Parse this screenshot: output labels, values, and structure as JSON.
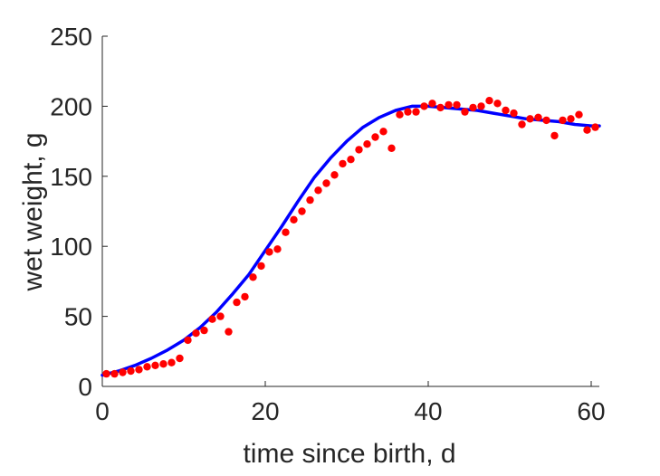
{
  "chart_data": {
    "type": "scatter",
    "title": "",
    "xlabel": "time since birth, d",
    "ylabel": "wet weight, g",
    "xlim": [
      0,
      61
    ],
    "ylim": [
      0,
      250
    ],
    "xticks": [
      0,
      20,
      40,
      60
    ],
    "yticks": [
      0,
      50,
      100,
      150,
      200,
      250
    ],
    "xtick_labels": [
      "0",
      "20",
      "40",
      "60"
    ],
    "ytick_labels": [
      "0",
      "50",
      "100",
      "150",
      "200",
      "250"
    ],
    "grid": false,
    "legend": "none",
    "series": [
      {
        "kind": "points",
        "color": "#ff0000",
        "x": [
          0.5,
          1.5,
          2.5,
          3.5,
          4.5,
          5.5,
          6.5,
          7.5,
          8.5,
          9.5,
          10.5,
          11.5,
          12.5,
          13.5,
          14.5,
          15.5,
          16.5,
          17.5,
          18.5,
          19.5,
          20.5,
          21.5,
          22.5,
          23.5,
          24.5,
          25.5,
          26.5,
          27.5,
          28.5,
          29.5,
          30.5,
          31.5,
          32.5,
          33.5,
          34.5,
          35.5,
          36.5,
          37.5,
          38.5,
          39.5,
          40.5,
          41.5,
          42.5,
          43.5,
          44.5,
          45.5,
          46.5,
          47.5,
          48.5,
          49.5,
          50.5,
          51.5,
          52.5,
          53.5,
          54.5,
          55.5,
          56.5,
          57.5,
          58.5,
          59.5,
          60.5
        ],
        "y": [
          9,
          9,
          10,
          11,
          12,
          14,
          15,
          16,
          17,
          20,
          33,
          38,
          40,
          48,
          50,
          39,
          60,
          64,
          78,
          86,
          96,
          98,
          110,
          119,
          125,
          133,
          140,
          145,
          151,
          159,
          162,
          169,
          173,
          178,
          182,
          170,
          194,
          196,
          196,
          200,
          202,
          199,
          201,
          201,
          196,
          199,
          200,
          204,
          202,
          197,
          195,
          187,
          191,
          192,
          190,
          179,
          190,
          191,
          194,
          183,
          185
        ]
      },
      {
        "kind": "curve",
        "color": "#0000ff",
        "x": [
          0,
          2,
          4,
          6,
          8,
          10,
          12,
          14,
          16,
          18,
          20,
          22,
          24,
          26,
          28,
          30,
          32,
          34,
          36,
          38,
          40,
          42,
          44,
          46,
          48,
          50,
          52,
          54,
          56,
          58,
          60,
          61
        ],
        "y": [
          8,
          11,
          15,
          20,
          26,
          33,
          42,
          53,
          66,
          80,
          97,
          114,
          132,
          149,
          163,
          175,
          185,
          192,
          197,
          200,
          200,
          199,
          198,
          197,
          195,
          193,
          191,
          190,
          189,
          187,
          186,
          186
        ]
      }
    ]
  }
}
